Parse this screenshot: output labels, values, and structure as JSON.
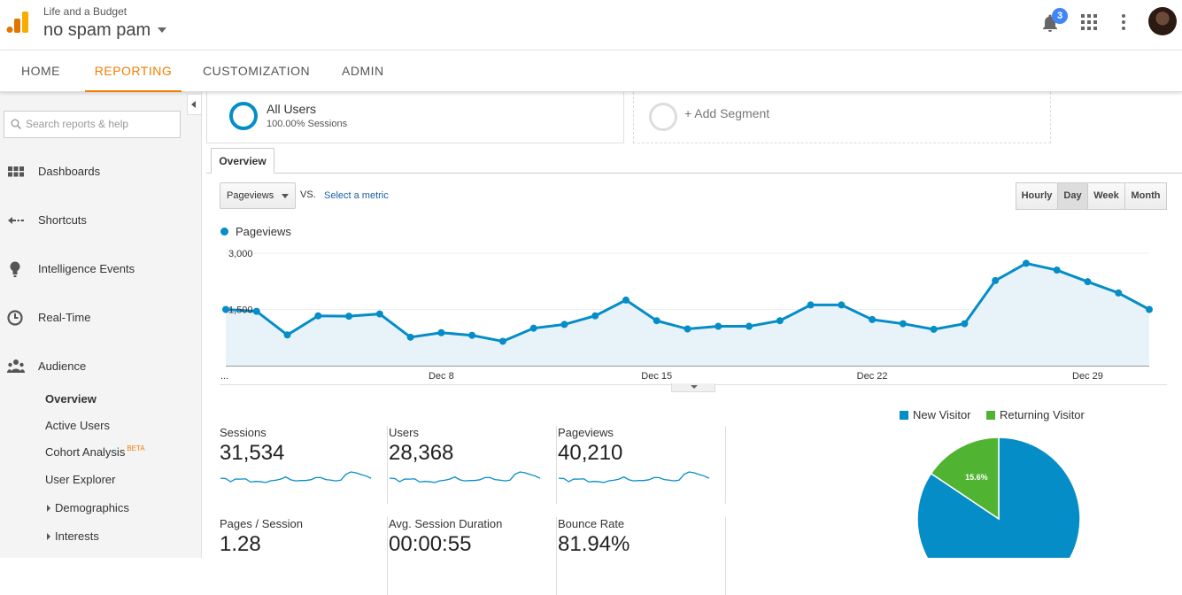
{
  "header": {
    "account_small": "Life and a Budget",
    "account_name": "no spam pam",
    "notifications_count": "3"
  },
  "nav": {
    "tabs": [
      "HOME",
      "REPORTING",
      "CUSTOMIZATION",
      "ADMIN"
    ],
    "active": "REPORTING"
  },
  "sidebar": {
    "search_placeholder": "Search reports & help",
    "items": [
      {
        "label": "Dashboards",
        "icon": "dashboard-icon"
      },
      {
        "label": "Shortcuts",
        "icon": "shortcuts-icon"
      },
      {
        "label": "Intelligence Events",
        "icon": "lightbulb-icon"
      },
      {
        "label": "Real-Time",
        "icon": "clock-icon"
      },
      {
        "label": "Audience",
        "icon": "people-icon"
      }
    ],
    "audience_sub": {
      "overview": "Overview",
      "active_users": "Active Users",
      "cohort": "Cohort Analysis",
      "cohort_badge": "BETA",
      "user_explorer": "User Explorer",
      "demographics": "Demographics",
      "interests": "Interests"
    }
  },
  "segments": {
    "all_users": "All Users",
    "all_users_sub": "100.00% Sessions",
    "add_segment": "+ Add Segment"
  },
  "overview_tab": "Overview",
  "controls": {
    "metric": "Pageviews",
    "vs": "VS.",
    "select_metric": "Select a metric",
    "granularity": [
      "Hourly",
      "Day",
      "Week",
      "Month"
    ],
    "granularity_active": "Day"
  },
  "chart_data": {
    "type": "area",
    "series": [
      {
        "name": "Pageviews",
        "values": [
          1500,
          1450,
          820,
          1330,
          1320,
          1380,
          760,
          880,
          810,
          650,
          1000,
          1100,
          1330,
          1750,
          1200,
          980,
          1050,
          1050,
          1200,
          1620,
          1620,
          1230,
          1120,
          970,
          1120,
          2270,
          2730,
          2550,
          2240,
          1940,
          1500
        ]
      }
    ],
    "x_tick_labels": [
      "...",
      "Dec 8",
      "Dec 15",
      "Dec 22",
      "Dec 29"
    ],
    "x_tick_index": [
      0,
      7,
      14,
      21,
      28
    ],
    "y_tick_labels": [
      "3,000",
      "1,500"
    ],
    "y_ticks": [
      3000,
      1500
    ],
    "ylim": [
      0,
      3000
    ],
    "color": "#058dc7",
    "fill": "#e8f3f9"
  },
  "metrics": [
    {
      "label": "Sessions",
      "value": "31,534"
    },
    {
      "label": "Users",
      "value": "28,368"
    },
    {
      "label": "Pageviews",
      "value": "40,210"
    },
    {
      "label": "Pages / Session",
      "value": "1.28"
    },
    {
      "label": "Avg. Session Duration",
      "value": "00:00:55"
    },
    {
      "label": "Bounce Rate",
      "value": "81.94%"
    }
  ],
  "pie": {
    "legend": [
      {
        "name": "New Visitor",
        "color": "#058dc7"
      },
      {
        "name": "Returning Visitor",
        "color": "#50b432"
      }
    ],
    "slices": [
      84.4,
      15.6
    ],
    "returning_label": "15.6%"
  }
}
